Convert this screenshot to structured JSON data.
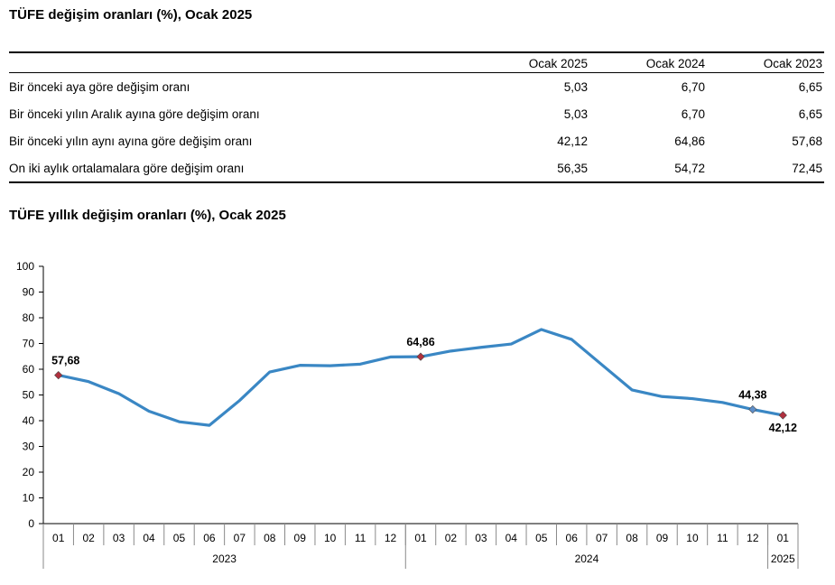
{
  "table": {
    "title": "TÜFE değişim oranları (%), Ocak 2025",
    "columns": [
      "Ocak 2025",
      "Ocak 2024",
      "Ocak 2023"
    ],
    "rows": [
      {
        "label": "Bir önceki aya göre değişim oranı",
        "values": [
          "5,03",
          "6,70",
          "6,65"
        ]
      },
      {
        "label": "Bir önceki yılın Aralık ayına göre değişim oranı",
        "values": [
          "5,03",
          "6,70",
          "6,65"
        ]
      },
      {
        "label": "Bir önceki yılın aynı ayına göre değişim oranı",
        "values": [
          "42,12",
          "64,86",
          "57,68"
        ]
      },
      {
        "label": "On iki aylık ortalamalara göre değişim oranı",
        "values": [
          "56,35",
          "54,72",
          "72,45"
        ]
      }
    ]
  },
  "chart_data": {
    "type": "line",
    "title": "TÜFE yıllık değişim oranları (%), Ocak 2025",
    "xlabel": "",
    "ylabel": "",
    "ylim": [
      0,
      100
    ],
    "yticks": [
      0,
      10,
      20,
      30,
      40,
      50,
      60,
      70,
      80,
      90,
      100
    ],
    "grid": false,
    "line_color": "#3a87c4",
    "marker_color": "#b0303e",
    "x": [
      "01",
      "02",
      "03",
      "04",
      "05",
      "06",
      "07",
      "08",
      "09",
      "10",
      "11",
      "12",
      "01",
      "02",
      "03",
      "04",
      "05",
      "06",
      "07",
      "08",
      "09",
      "10",
      "11",
      "12",
      "01"
    ],
    "year_groups": [
      {
        "label": "2023",
        "count": 12
      },
      {
        "label": "2024",
        "count": 12
      },
      {
        "label": "2025",
        "count": 1
      }
    ],
    "series": [
      {
        "values": [
          57.68,
          55.18,
          50.51,
          43.68,
          39.59,
          38.21,
          47.83,
          58.94,
          61.53,
          61.36,
          61.98,
          64.77,
          64.86,
          67.07,
          68.5,
          69.8,
          75.45,
          71.6,
          61.78,
          51.97,
          49.38,
          48.58,
          47.09,
          44.38,
          42.12
        ]
      }
    ],
    "annotations": [
      {
        "index": 0,
        "label": "57,68",
        "marker": "red"
      },
      {
        "index": 12,
        "label": "64,86",
        "marker": "red"
      },
      {
        "index": 23,
        "label": "44,38",
        "marker": "blue"
      },
      {
        "index": 24,
        "label": "42,12",
        "marker": "red"
      }
    ]
  }
}
